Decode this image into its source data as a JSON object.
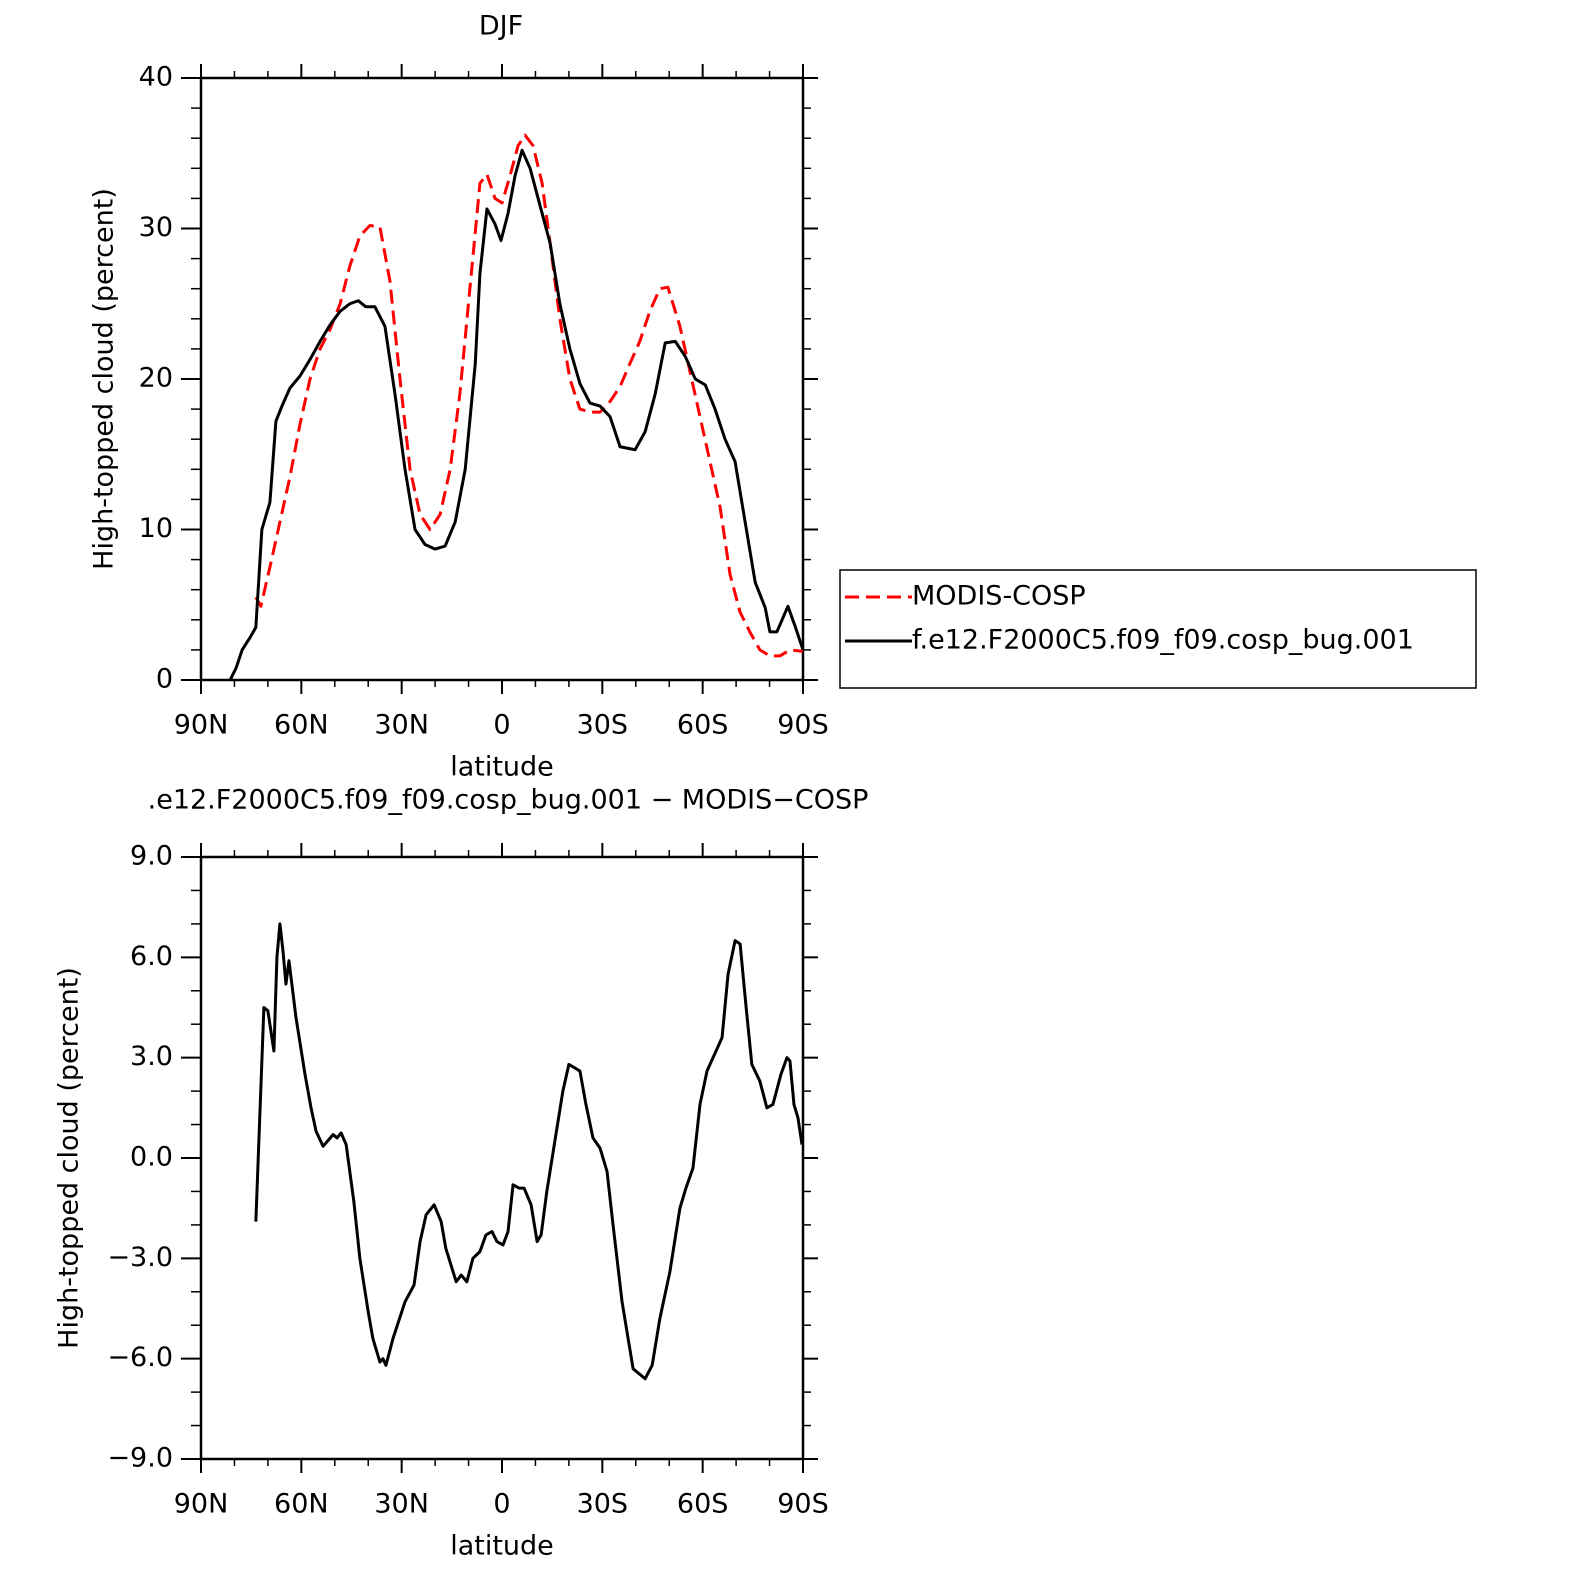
{
  "chart_data": [
    {
      "type": "line",
      "title": "DJF",
      "xlabel": "latitude",
      "ylabel": "High-topped cloud (percent)",
      "xlim": [
        90,
        -90
      ],
      "xticks": [
        {
          "value": 90,
          "label": "90N"
        },
        {
          "value": 60,
          "label": "60N"
        },
        {
          "value": 30,
          "label": "30N"
        },
        0,
        {
          "value": -30,
          "label": "30S"
        },
        {
          "value": -60,
          "label": "60S"
        },
        {
          "value": -90,
          "label": "90S"
        }
      ],
      "ylim": [
        0,
        40
      ],
      "yticks": [
        0,
        10,
        20,
        30,
        40
      ],
      "legend": "right",
      "series": [
        {
          "name": "MODIS-COSP",
          "color": "#ff0000",
          "line_style": "dashed",
          "x": [
            73.6,
            72.1,
            69.4,
            66.4,
            63.4,
            60.4,
            57.4,
            54.4,
            51.4,
            48.4,
            45.5,
            42.5,
            39.5,
            36.5,
            33.5,
            30.5,
            27.5,
            24.5,
            21.5,
            18.5,
            15.5,
            12.6,
            9.6,
            6.6,
            4.5,
            2.1,
            0,
            -2.4,
            -4.8,
            -6.9,
            -9.3,
            -12,
            -14.4,
            -17.3,
            -20.3,
            -23.3,
            -26.3,
            -29.3,
            -32.3,
            -35.3,
            -38.2,
            -41.2,
            -44.2,
            -47.2,
            -49.6,
            -53.2,
            -56.2,
            -59.2,
            -62.2,
            -65.2,
            -68.2,
            -71.2,
            -74.1,
            -77.1,
            -80.1,
            -83.1,
            -86.1,
            -90
          ],
          "values": [
            5.5,
            4.9,
            7.5,
            10.5,
            13.5,
            17,
            20,
            22,
            23.3,
            25,
            27.5,
            29.5,
            30.2,
            30.1,
            26.5,
            20,
            14,
            11,
            10,
            11,
            14,
            19,
            26,
            33,
            33.6,
            32,
            31.7,
            33.5,
            35.5,
            36.2,
            35.5,
            33,
            29,
            24,
            20,
            18,
            17.8,
            17.8,
            18.5,
            19.5,
            21,
            22.5,
            24.5,
            26,
            26.1,
            23.5,
            20.5,
            17.5,
            14.5,
            11.5,
            7,
            4.5,
            3.2,
            2,
            1.6,
            1.6,
            2,
            1.9
          ]
        },
        {
          "name": "f.e12.F2000C5.f09_f09.cosp_bug.001",
          "color": "#000000",
          "line_style": "solid",
          "x": [
            81.3,
            79.5,
            77.7,
            75.4,
            73.6,
            71.8,
            69.4,
            67.6,
            65.8,
            63.4,
            60.4,
            57.4,
            54.4,
            51.4,
            48.4,
            45.5,
            43,
            40.7,
            38,
            35,
            32,
            29,
            26,
            23,
            20,
            17,
            14,
            11,
            8,
            6.6,
            4.5,
            2.1,
            0.3,
            -1.8,
            -3.9,
            -6,
            -8.4,
            -11.4,
            -14.4,
            -17.3,
            -20.3,
            -23.3,
            -26.3,
            -29.3,
            -32.3,
            -35.3,
            -39.8,
            -42.8,
            -45.8,
            -48.8,
            -51.8,
            -54.8,
            -57.8,
            -60.8,
            -63.7,
            -66.7,
            -69.7,
            -72.7,
            -75.7,
            -78.7,
            -80.1,
            -82.2,
            -85.5,
            -87.6,
            -90
          ],
          "values": [
            0,
            0.8,
            2,
            2.8,
            3.5,
            10,
            11.8,
            17.2,
            18.2,
            19.4,
            20.2,
            21.3,
            22.5,
            23.6,
            24.5,
            25,
            25.2,
            24.8,
            24.8,
            23.5,
            19,
            14,
            10,
            9,
            8.7,
            8.9,
            10.5,
            14,
            21,
            27,
            31.3,
            30.3,
            29.2,
            31,
            33.5,
            35.2,
            34,
            31.5,
            29,
            25,
            22,
            19.7,
            18.4,
            18.2,
            17.5,
            15.5,
            15.3,
            16.5,
            19,
            22.4,
            22.5,
            21.5,
            20,
            19.6,
            18,
            16,
            14.5,
            10.5,
            6.5,
            4.8,
            3.2,
            3.2,
            4.9,
            3.6,
            2
          ]
        }
      ]
    },
    {
      "type": "line",
      "title": ".e12.F2000C5.f09_f09.cosp_bug.001 − MODIS−COSP",
      "xlabel": "latitude",
      "ylabel": "High-topped cloud (percent)",
      "xlim": [
        90,
        -90
      ],
      "xticks": [
        {
          "value": 90,
          "label": "90N"
        },
        {
          "value": 60,
          "label": "60N"
        },
        {
          "value": 30,
          "label": "30N"
        },
        0,
        {
          "value": -30,
          "label": "30S"
        },
        {
          "value": -60,
          "label": "60S"
        },
        {
          "value": -90,
          "label": "90S"
        }
      ],
      "ylim": [
        -9,
        9
      ],
      "yticks": [
        {
          "value": -9,
          "label": "−9.0"
        },
        {
          "value": -6,
          "label": "−6.0"
        },
        {
          "value": -3,
          "label": "−3.0"
        },
        {
          "value": 0,
          "label": "0.0"
        },
        {
          "value": 3,
          "label": "3.0"
        },
        {
          "value": 6,
          "label": "6.0"
        },
        {
          "value": 9,
          "label": "9.0"
        }
      ],
      "color": "#000000",
      "x": [
        73.6,
        71.2,
        70,
        68.2,
        67.3,
        66.4,
        65.5,
        64.6,
        63.7,
        61.6,
        58.9,
        57.1,
        55.6,
        53.5,
        50.5,
        49.3,
        48.1,
        46.6,
        44.3,
        42.5,
        40,
        38.6,
        36.5,
        35.6,
        34.7,
        32.6,
        29,
        26.3,
        24.5,
        22.7,
        20.3,
        18.2,
        16.8,
        13.7,
        12.2,
        10.5,
        8.7,
        6.6,
        4.8,
        3,
        1.5,
        -0.3,
        -1.8,
        -3.3,
        -5.1,
        -6.6,
        -8.7,
        -10.5,
        -11.7,
        -13.4,
        -15.8,
        -18.2,
        -20,
        -23.3,
        -25.1,
        -27.2,
        -29.3,
        -31.4,
        -33.2,
        -35.9,
        -39.2,
        -42.8,
        -44.9,
        -47.2,
        -50.2,
        -53.2,
        -55,
        -57.1,
        -59.2,
        -61.3,
        -64,
        -65.8,
        -67.6,
        -69.7,
        -71.2,
        -73,
        -74.7,
        -77.1,
        -79.2,
        -81,
        -83.4,
        -85.2,
        -86.1,
        -87.3,
        -88.5,
        -89.7
      ],
      "values": [
        -1.9,
        4.5,
        4.4,
        3.2,
        6,
        7,
        6.2,
        5.2,
        5.9,
        4.2,
        2.5,
        1.5,
        0.8,
        0.35,
        0.7,
        0.6,
        0.75,
        0.4,
        -1.3,
        -3,
        -4.6,
        -5.4,
        -6.1,
        -6,
        -6.2,
        -5.4,
        -4.3,
        -3.8,
        -2.5,
        -1.7,
        -1.4,
        -1.9,
        -2.7,
        -3.7,
        -3.5,
        -3.7,
        -3,
        -2.8,
        -2.3,
        -2.2,
        -2.5,
        -2.6,
        -2.2,
        -0.8,
        -0.9,
        -0.9,
        -1.4,
        -2.5,
        -2.3,
        -1,
        0.5,
        2,
        2.8,
        2.6,
        1.6,
        0.6,
        0.3,
        -0.4,
        -2,
        -4.3,
        -6.3,
        -6.6,
        -6.2,
        -4.8,
        -3.4,
        -1.5,
        -0.9,
        -0.3,
        1.6,
        2.6,
        3.2,
        3.6,
        5.5,
        6.5,
        6.4,
        4.5,
        2.8,
        2.3,
        1.5,
        1.6,
        2.5,
        3,
        2.9,
        1.6,
        1.2,
        0.4
      ]
    }
  ]
}
